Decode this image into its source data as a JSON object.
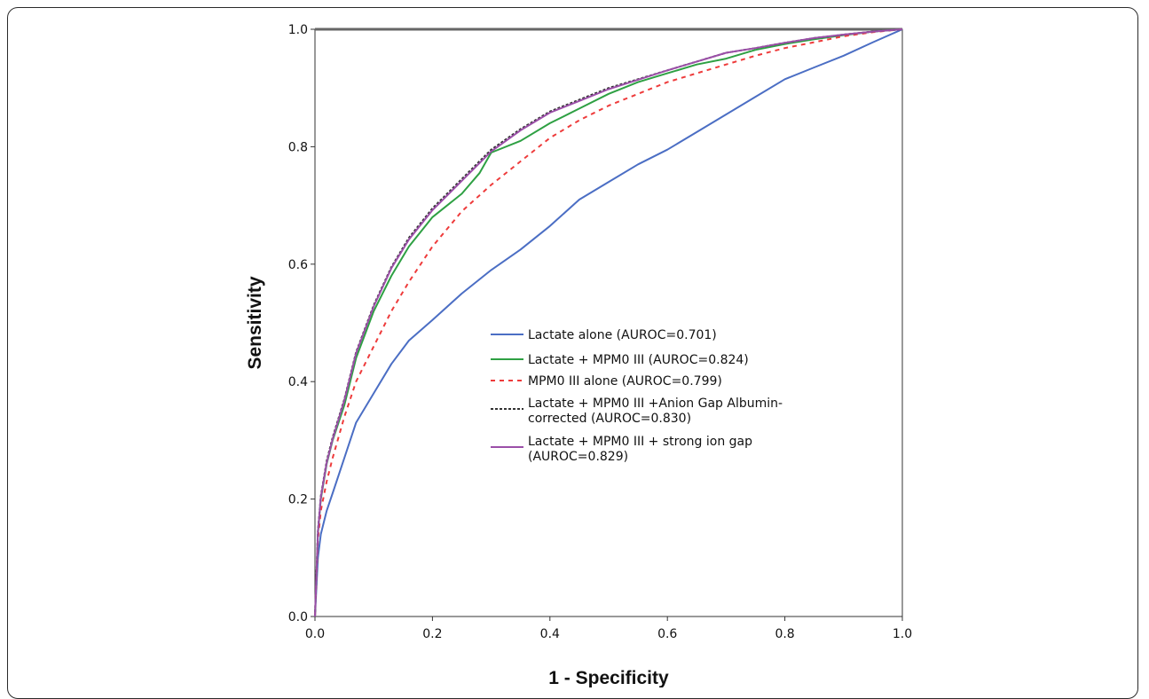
{
  "chart_data": {
    "type": "line",
    "xlabel": "1 - Specificity",
    "ylabel": "Sensitivity",
    "xlim": [
      0,
      1
    ],
    "ylim": [
      0,
      1
    ],
    "xticks": [
      "0.0",
      "0.2",
      "0.4",
      "0.6",
      "0.8",
      "1.0"
    ],
    "yticks": [
      "0.0",
      "0.2",
      "0.4",
      "0.6",
      "0.8",
      "1.0"
    ],
    "grid": false,
    "legend_position": "center-right",
    "series": [
      {
        "name": "Lactate alone (AUROC=0.701)",
        "color": "#4b6ec4",
        "dash": "solid",
        "x": [
          0,
          0.005,
          0.01,
          0.02,
          0.03,
          0.05,
          0.07,
          0.1,
          0.13,
          0.16,
          0.2,
          0.25,
          0.3,
          0.35,
          0.4,
          0.45,
          0.5,
          0.55,
          0.6,
          0.65,
          0.7,
          0.75,
          0.8,
          0.85,
          0.9,
          0.95,
          1.0
        ],
        "y": [
          0,
          0.1,
          0.14,
          0.18,
          0.21,
          0.27,
          0.33,
          0.38,
          0.43,
          0.47,
          0.505,
          0.55,
          0.59,
          0.625,
          0.665,
          0.71,
          0.74,
          0.77,
          0.795,
          0.825,
          0.855,
          0.885,
          0.915,
          0.935,
          0.955,
          0.978,
          1.0
        ]
      },
      {
        "name": "Lactate + MPM0 III (AUROC=0.824)",
        "color": "#2ea043",
        "dash": "solid",
        "x": [
          0,
          0.005,
          0.01,
          0.02,
          0.03,
          0.05,
          0.07,
          0.1,
          0.13,
          0.16,
          0.2,
          0.25,
          0.28,
          0.3,
          0.35,
          0.4,
          0.45,
          0.5,
          0.55,
          0.6,
          0.65,
          0.7,
          0.75,
          0.8,
          0.85,
          0.9,
          0.95,
          1.0
        ],
        "y": [
          0,
          0.14,
          0.2,
          0.26,
          0.3,
          0.36,
          0.44,
          0.52,
          0.58,
          0.63,
          0.68,
          0.72,
          0.755,
          0.79,
          0.81,
          0.84,
          0.865,
          0.89,
          0.91,
          0.925,
          0.94,
          0.95,
          0.965,
          0.975,
          0.983,
          0.99,
          0.996,
          1.0
        ]
      },
      {
        "name": "MPM0 III alone (AUROC=0.799)",
        "color": "#ee3b3b",
        "dash": "dashed",
        "x": [
          0,
          0.005,
          0.01,
          0.02,
          0.03,
          0.05,
          0.07,
          0.1,
          0.13,
          0.16,
          0.2,
          0.25,
          0.3,
          0.35,
          0.4,
          0.45,
          0.5,
          0.55,
          0.6,
          0.65,
          0.7,
          0.75,
          0.8,
          0.85,
          0.9,
          0.95,
          1.0
        ],
        "y": [
          0,
          0.13,
          0.18,
          0.23,
          0.27,
          0.34,
          0.4,
          0.46,
          0.52,
          0.57,
          0.63,
          0.69,
          0.735,
          0.775,
          0.815,
          0.845,
          0.87,
          0.89,
          0.91,
          0.925,
          0.94,
          0.955,
          0.968,
          0.978,
          0.988,
          0.995,
          1.0
        ]
      },
      {
        "name": "Lactate + MPM0 III +Anion Gap Albumin-corrected (AUROC=0.830)",
        "color": "#333333",
        "dash": "dashed",
        "x": [
          0,
          0.005,
          0.01,
          0.02,
          0.03,
          0.05,
          0.07,
          0.1,
          0.13,
          0.16,
          0.2,
          0.25,
          0.3,
          0.35,
          0.4,
          0.45,
          0.5,
          0.55,
          0.6,
          0.65,
          0.7,
          0.75,
          0.8,
          0.85,
          0.9,
          0.95,
          1.0
        ],
        "y": [
          0,
          0.145,
          0.205,
          0.265,
          0.305,
          0.37,
          0.45,
          0.53,
          0.595,
          0.645,
          0.695,
          0.745,
          0.795,
          0.83,
          0.86,
          0.88,
          0.9,
          0.915,
          0.93,
          0.945,
          0.96,
          0.968,
          0.977,
          0.985,
          0.991,
          0.996,
          1.0
        ]
      },
      {
        "name": "Lactate + MPM0 III + strong ion gap (AUROC=0.829)",
        "color": "#9b4fa8",
        "dash": "solid",
        "x": [
          0,
          0.005,
          0.01,
          0.02,
          0.03,
          0.05,
          0.07,
          0.1,
          0.13,
          0.16,
          0.2,
          0.25,
          0.3,
          0.35,
          0.4,
          0.45,
          0.5,
          0.55,
          0.6,
          0.65,
          0.7,
          0.75,
          0.8,
          0.85,
          0.9,
          0.95,
          1.0
        ],
        "y": [
          0,
          0.143,
          0.203,
          0.262,
          0.302,
          0.368,
          0.448,
          0.528,
          0.593,
          0.642,
          0.692,
          0.742,
          0.792,
          0.828,
          0.858,
          0.878,
          0.898,
          0.914,
          0.93,
          0.945,
          0.96,
          0.968,
          0.977,
          0.985,
          0.991,
          0.996,
          1.0
        ]
      }
    ]
  }
}
